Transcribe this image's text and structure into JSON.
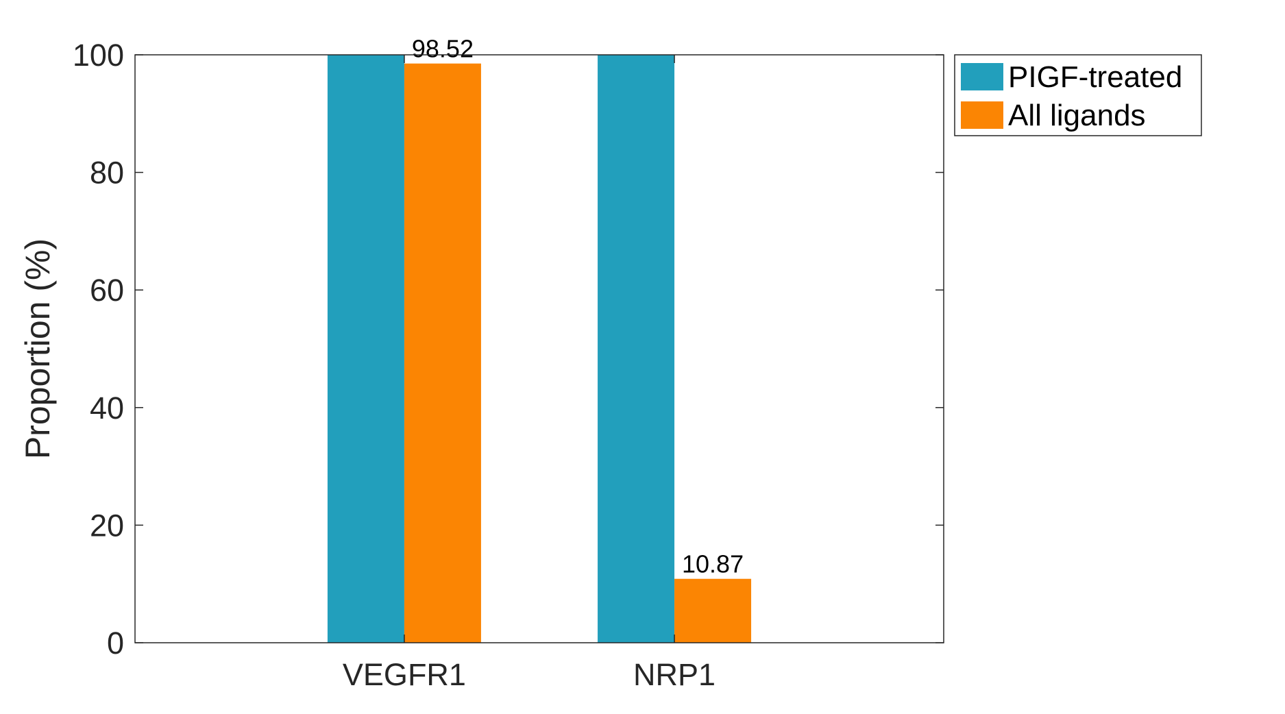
{
  "chart_data": {
    "type": "bar",
    "title": "",
    "xlabel": "",
    "ylabel": "Proportion (%)",
    "ylim": [
      0,
      100
    ],
    "yticks": [
      0,
      20,
      40,
      60,
      80,
      100
    ],
    "categories": [
      "VEGFR1",
      "NRP1"
    ],
    "series": [
      {
        "name": "PIGF-treated",
        "values": [
          100,
          100
        ],
        "color": "#229FBC",
        "data_labels": [
          "",
          ""
        ]
      },
      {
        "name": "All ligands",
        "values": [
          98.52,
          10.87
        ],
        "color": "#FB8503",
        "data_labels": [
          "98.52",
          "10.87"
        ]
      }
    ],
    "grid": false,
    "legend_position": "outside-top-right"
  }
}
